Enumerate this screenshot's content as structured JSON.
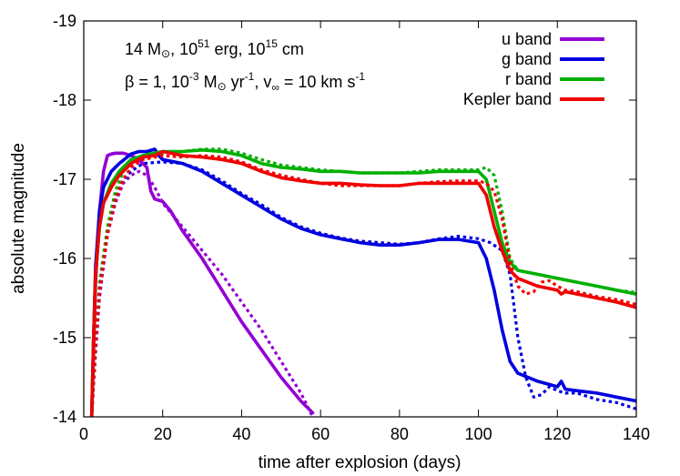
{
  "chart_data": {
    "type": "line",
    "xlabel": "time after explosion (days)",
    "ylabel": "absolute magnitude",
    "xlim": [
      0,
      140
    ],
    "ylim": [
      -14,
      -19
    ],
    "y_inverted": true,
    "xticks": [
      "0",
      "20",
      "40",
      "60",
      "80",
      "100",
      "120",
      "140"
    ],
    "yticks": [
      "-14",
      "-15",
      "-16",
      "-17",
      "-18",
      "-19"
    ],
    "grid": false,
    "legend_position": "top-right",
    "annotations": {
      "line1": {
        "mass": "14 M",
        "sun": "⊙",
        "energy_pre": ", 10",
        "energy_exp": "51",
        "energy_post": " erg, 10",
        "radius_exp": "15",
        "radius_post": " cm"
      },
      "line2": {
        "beta": "β = 1, 10",
        "mdot_exp": "-3",
        "mdot_mid": " M",
        "sun": "⊙",
        "yr_pre": " yr",
        "yr_exp": "-1",
        "v_pre": ", v",
        "v_sub": "∞",
        "v_mid": " = 10 km s",
        "s_exp": "-1"
      }
    },
    "line_styles": {
      "solid": "model",
      "dotted": "comparison"
    },
    "series": [
      {
        "name": "u band",
        "color": "#9400d3",
        "solid": [
          [
            2,
            -14
          ],
          [
            2.5,
            -14.8
          ],
          [
            3,
            -15.7
          ],
          [
            4,
            -16.6
          ],
          [
            5,
            -17.1
          ],
          [
            6,
            -17.3
          ],
          [
            7,
            -17.32
          ],
          [
            8,
            -17.33
          ],
          [
            10,
            -17.33
          ],
          [
            12,
            -17.3
          ],
          [
            14,
            -17.25
          ],
          [
            15,
            -17.2
          ],
          [
            16,
            -17.15
          ],
          [
            16.5,
            -17.0
          ],
          [
            17,
            -16.85
          ],
          [
            18,
            -16.75
          ],
          [
            20,
            -16.72
          ],
          [
            22,
            -16.6
          ],
          [
            25,
            -16.35
          ],
          [
            30,
            -16.0
          ],
          [
            35,
            -15.6
          ],
          [
            40,
            -15.2
          ],
          [
            45,
            -14.85
          ],
          [
            50,
            -14.5
          ],
          [
            55,
            -14.2
          ],
          [
            58,
            -14.05
          ]
        ],
        "dotted": [
          [
            2,
            -14
          ],
          [
            3,
            -14.8
          ],
          [
            4,
            -15.5
          ],
          [
            6,
            -16.3
          ],
          [
            8,
            -16.7
          ],
          [
            10,
            -16.95
          ],
          [
            12,
            -17.05
          ],
          [
            14,
            -17.1
          ],
          [
            16,
            -17.05
          ],
          [
            18,
            -16.9
          ],
          [
            20,
            -16.7
          ],
          [
            25,
            -16.4
          ],
          [
            30,
            -16.1
          ],
          [
            35,
            -15.8
          ],
          [
            40,
            -15.45
          ],
          [
            45,
            -15.1
          ],
          [
            50,
            -14.7
          ],
          [
            55,
            -14.3
          ],
          [
            58,
            -14.0
          ]
        ]
      },
      {
        "name": "g band",
        "color": "#0000e0",
        "solid": [
          [
            2,
            -14
          ],
          [
            2.5,
            -15.0
          ],
          [
            3,
            -15.9
          ],
          [
            4,
            -16.6
          ],
          [
            5,
            -16.9
          ],
          [
            7,
            -17.1
          ],
          [
            9,
            -17.2
          ],
          [
            12,
            -17.32
          ],
          [
            14,
            -17.35
          ],
          [
            16,
            -17.35
          ],
          [
            18,
            -17.38
          ],
          [
            19,
            -17.3
          ],
          [
            20,
            -17.25
          ],
          [
            25,
            -17.2
          ],
          [
            30,
            -17.1
          ],
          [
            35,
            -16.95
          ],
          [
            40,
            -16.8
          ],
          [
            45,
            -16.65
          ],
          [
            50,
            -16.5
          ],
          [
            55,
            -16.38
          ],
          [
            60,
            -16.3
          ],
          [
            65,
            -16.25
          ],
          [
            70,
            -16.2
          ],
          [
            75,
            -16.17
          ],
          [
            80,
            -16.17
          ],
          [
            85,
            -16.2
          ],
          [
            90,
            -16.24
          ],
          [
            95,
            -16.24
          ],
          [
            100,
            -16.2
          ],
          [
            102,
            -16.0
          ],
          [
            104,
            -15.6
          ],
          [
            106,
            -15.1
          ],
          [
            108,
            -14.7
          ],
          [
            110,
            -14.55
          ],
          [
            115,
            -14.45
          ],
          [
            120,
            -14.38
          ],
          [
            121,
            -14.45
          ],
          [
            122,
            -14.35
          ],
          [
            125,
            -14.33
          ],
          [
            130,
            -14.3
          ],
          [
            135,
            -14.25
          ],
          [
            140,
            -14.2
          ]
        ],
        "dotted": [
          [
            2,
            -14
          ],
          [
            3,
            -14.9
          ],
          [
            4,
            -15.6
          ],
          [
            6,
            -16.3
          ],
          [
            8,
            -16.75
          ],
          [
            10,
            -17.0
          ],
          [
            12,
            -17.1
          ],
          [
            15,
            -17.2
          ],
          [
            20,
            -17.22
          ],
          [
            25,
            -17.2
          ],
          [
            30,
            -17.12
          ],
          [
            35,
            -16.98
          ],
          [
            40,
            -16.82
          ],
          [
            45,
            -16.68
          ],
          [
            50,
            -16.52
          ],
          [
            55,
            -16.4
          ],
          [
            60,
            -16.32
          ],
          [
            65,
            -16.26
          ],
          [
            70,
            -16.22
          ],
          [
            75,
            -16.2
          ],
          [
            80,
            -16.18
          ],
          [
            85,
            -16.2
          ],
          [
            90,
            -16.25
          ],
          [
            95,
            -16.28
          ],
          [
            100,
            -16.25
          ],
          [
            103,
            -16.2
          ],
          [
            106,
            -16.1
          ],
          [
            108,
            -15.8
          ],
          [
            110,
            -15.0
          ],
          [
            112,
            -14.5
          ],
          [
            114,
            -14.25
          ],
          [
            116,
            -14.28
          ],
          [
            118,
            -14.38
          ],
          [
            120,
            -14.33
          ],
          [
            122,
            -14.3
          ],
          [
            125,
            -14.3
          ],
          [
            130,
            -14.22
          ],
          [
            135,
            -14.18
          ],
          [
            140,
            -14.1
          ]
        ]
      },
      {
        "name": "r band",
        "color": "#00b000",
        "solid": [
          [
            2,
            -14
          ],
          [
            2.5,
            -15.0
          ],
          [
            3,
            -15.8
          ],
          [
            4,
            -16.4
          ],
          [
            5,
            -16.7
          ],
          [
            7,
            -16.95
          ],
          [
            9,
            -17.1
          ],
          [
            12,
            -17.25
          ],
          [
            15,
            -17.3
          ],
          [
            18,
            -17.33
          ],
          [
            20,
            -17.35
          ],
          [
            25,
            -17.35
          ],
          [
            30,
            -17.37
          ],
          [
            35,
            -17.35
          ],
          [
            40,
            -17.3
          ],
          [
            45,
            -17.2
          ],
          [
            50,
            -17.15
          ],
          [
            55,
            -17.13
          ],
          [
            60,
            -17.1
          ],
          [
            65,
            -17.1
          ],
          [
            70,
            -17.08
          ],
          [
            75,
            -17.08
          ],
          [
            80,
            -17.08
          ],
          [
            85,
            -17.08
          ],
          [
            90,
            -17.1
          ],
          [
            95,
            -17.1
          ],
          [
            100,
            -17.1
          ],
          [
            102,
            -17.0
          ],
          [
            104,
            -16.6
          ],
          [
            106,
            -16.2
          ],
          [
            108,
            -15.95
          ],
          [
            110,
            -15.85
          ],
          [
            115,
            -15.8
          ],
          [
            120,
            -15.75
          ],
          [
            125,
            -15.7
          ],
          [
            130,
            -15.65
          ],
          [
            135,
            -15.6
          ],
          [
            140,
            -15.55
          ]
        ],
        "dotted": [
          [
            2,
            -14
          ],
          [
            3,
            -14.9
          ],
          [
            4,
            -15.7
          ],
          [
            6,
            -16.4
          ],
          [
            8,
            -16.85
          ],
          [
            10,
            -17.1
          ],
          [
            12,
            -17.25
          ],
          [
            15,
            -17.3
          ],
          [
            20,
            -17.33
          ],
          [
            25,
            -17.35
          ],
          [
            30,
            -17.38
          ],
          [
            35,
            -17.38
          ],
          [
            40,
            -17.33
          ],
          [
            45,
            -17.25
          ],
          [
            50,
            -17.18
          ],
          [
            55,
            -17.15
          ],
          [
            60,
            -17.12
          ],
          [
            65,
            -17.1
          ],
          [
            70,
            -17.08
          ],
          [
            75,
            -17.08
          ],
          [
            80,
            -17.08
          ],
          [
            85,
            -17.1
          ],
          [
            90,
            -17.12
          ],
          [
            95,
            -17.12
          ],
          [
            100,
            -17.12
          ],
          [
            102,
            -17.15
          ],
          [
            104,
            -17.05
          ],
          [
            106,
            -16.6
          ],
          [
            108,
            -16.0
          ],
          [
            110,
            -15.85
          ],
          [
            115,
            -15.8
          ],
          [
            120,
            -15.75
          ],
          [
            125,
            -15.7
          ],
          [
            130,
            -15.65
          ],
          [
            135,
            -15.6
          ],
          [
            140,
            -15.57
          ]
        ]
      },
      {
        "name": "Kepler band",
        "color": "#f00000",
        "solid": [
          [
            2,
            -14
          ],
          [
            2.5,
            -15.0
          ],
          [
            3,
            -15.8
          ],
          [
            4,
            -16.4
          ],
          [
            5,
            -16.7
          ],
          [
            7,
            -16.9
          ],
          [
            9,
            -17.05
          ],
          [
            12,
            -17.2
          ],
          [
            15,
            -17.28
          ],
          [
            18,
            -17.3
          ],
          [
            20,
            -17.35
          ],
          [
            25,
            -17.3
          ],
          [
            30,
            -17.28
          ],
          [
            35,
            -17.25
          ],
          [
            40,
            -17.2
          ],
          [
            45,
            -17.1
          ],
          [
            50,
            -17.02
          ],
          [
            55,
            -16.98
          ],
          [
            60,
            -16.95
          ],
          [
            65,
            -16.95
          ],
          [
            70,
            -16.93
          ],
          [
            75,
            -16.92
          ],
          [
            80,
            -16.92
          ],
          [
            85,
            -16.95
          ],
          [
            90,
            -16.95
          ],
          [
            95,
            -16.95
          ],
          [
            100,
            -16.95
          ],
          [
            102,
            -16.8
          ],
          [
            104,
            -16.4
          ],
          [
            106,
            -16.1
          ],
          [
            108,
            -15.85
          ],
          [
            110,
            -15.75
          ],
          [
            115,
            -15.65
          ],
          [
            120,
            -15.6
          ],
          [
            121,
            -15.55
          ],
          [
            122,
            -15.58
          ],
          [
            125,
            -15.55
          ],
          [
            130,
            -15.5
          ],
          [
            135,
            -15.45
          ],
          [
            140,
            -15.38
          ]
        ],
        "dotted": [
          [
            2,
            -14
          ],
          [
            3,
            -14.9
          ],
          [
            4,
            -15.6
          ],
          [
            6,
            -16.3
          ],
          [
            8,
            -16.75
          ],
          [
            10,
            -17.0
          ],
          [
            12,
            -17.15
          ],
          [
            15,
            -17.25
          ],
          [
            20,
            -17.3
          ],
          [
            25,
            -17.28
          ],
          [
            30,
            -17.3
          ],
          [
            35,
            -17.28
          ],
          [
            40,
            -17.22
          ],
          [
            45,
            -17.12
          ],
          [
            50,
            -17.05
          ],
          [
            55,
            -17.0
          ],
          [
            60,
            -16.95
          ],
          [
            65,
            -16.92
          ],
          [
            70,
            -16.92
          ],
          [
            75,
            -16.92
          ],
          [
            80,
            -16.92
          ],
          [
            85,
            -16.95
          ],
          [
            90,
            -16.97
          ],
          [
            95,
            -16.98
          ],
          [
            100,
            -16.98
          ],
          [
            102,
            -16.95
          ],
          [
            104,
            -16.85
          ],
          [
            106,
            -16.5
          ],
          [
            108,
            -15.95
          ],
          [
            110,
            -15.65
          ],
          [
            112,
            -15.55
          ],
          [
            114,
            -15.58
          ],
          [
            116,
            -15.7
          ],
          [
            118,
            -15.72
          ],
          [
            120,
            -15.65
          ],
          [
            122,
            -15.6
          ],
          [
            125,
            -15.58
          ],
          [
            130,
            -15.52
          ],
          [
            135,
            -15.48
          ],
          [
            140,
            -15.42
          ]
        ]
      }
    ]
  }
}
